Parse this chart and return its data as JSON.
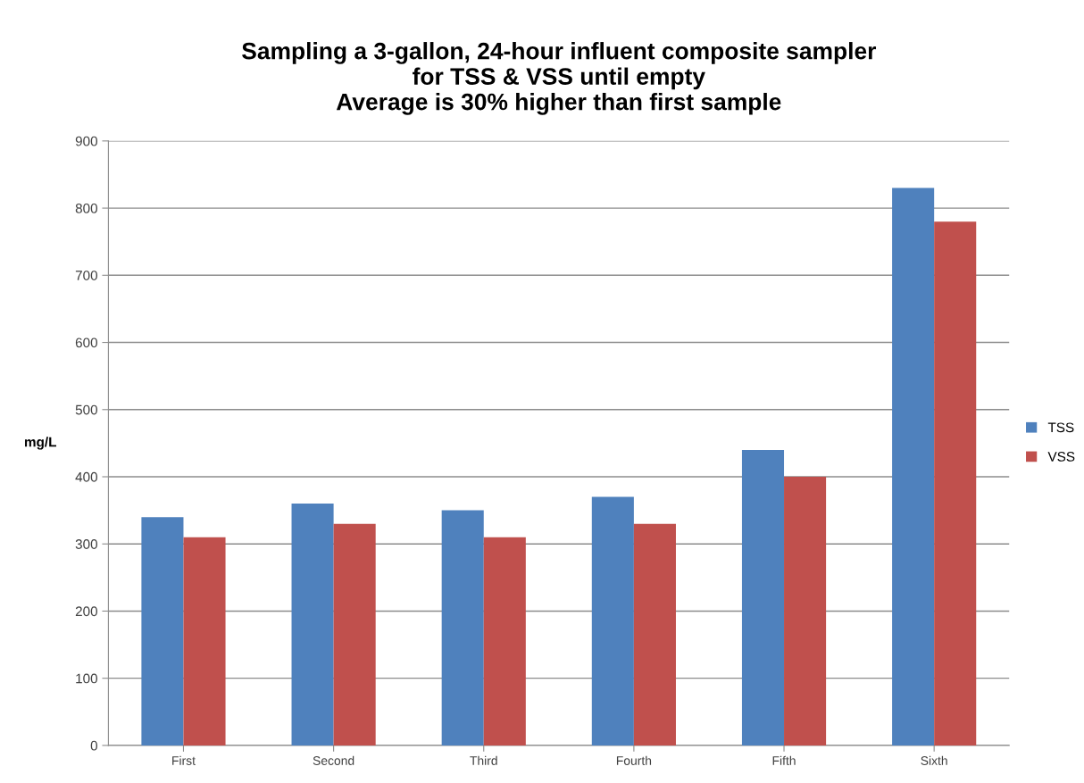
{
  "chart_data": {
    "type": "bar",
    "title": "Sampling a 3-gallon, 24-hour influent composite sampler\nfor TSS & VSS until empty\nAverage is 30% higher than first sample",
    "ylabel": "mg/L",
    "categories": [
      "First",
      "Second",
      "Third",
      "Fourth",
      "Fifth",
      "Sixth"
    ],
    "series": [
      {
        "name": "TSS",
        "color": "#4f81bd",
        "values": [
          340,
          360,
          350,
          370,
          440,
          830
        ]
      },
      {
        "name": "VSS",
        "color": "#c0504d",
        "values": [
          310,
          330,
          310,
          330,
          400,
          780
        ]
      }
    ],
    "ylim": [
      0,
      900
    ],
    "yticks": [
      0,
      100,
      200,
      300,
      400,
      500,
      600,
      700,
      800,
      900
    ],
    "grid": "y",
    "legend": "right"
  }
}
